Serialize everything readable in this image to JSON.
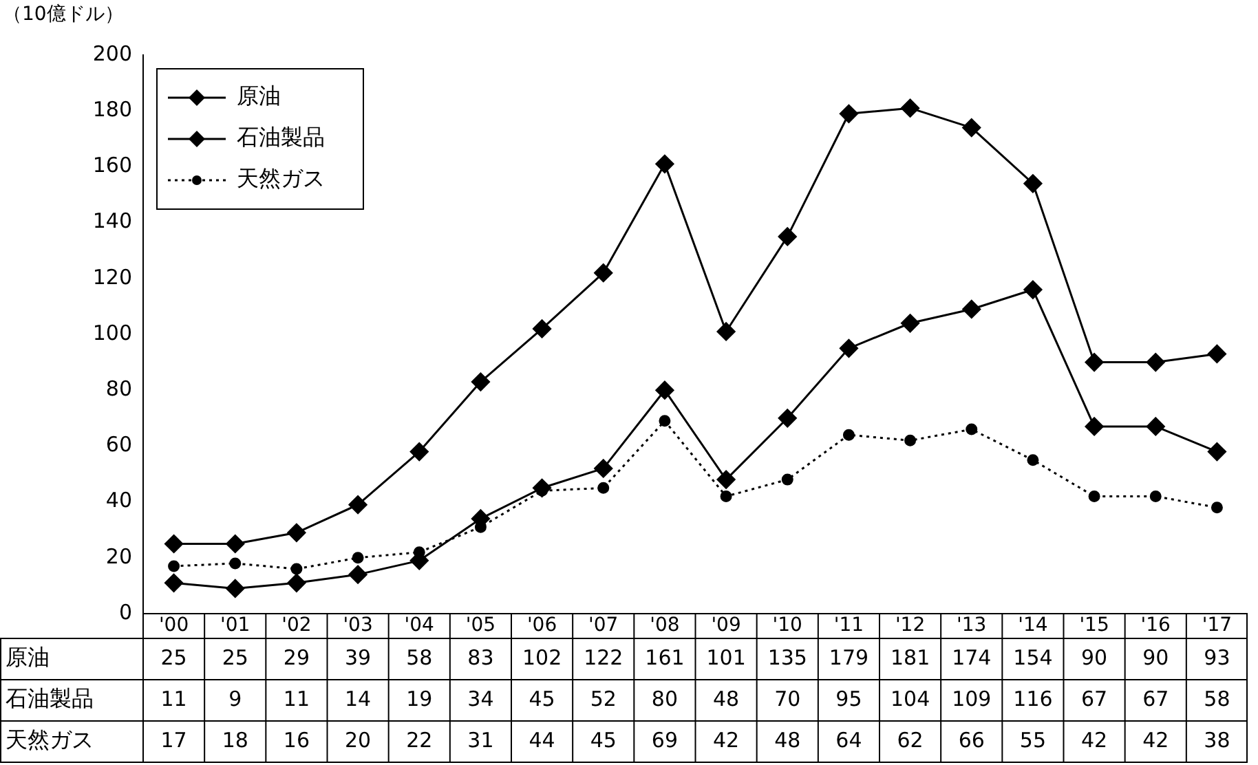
{
  "chart_data": {
    "type": "line",
    "ylabel": "（10億ドル）",
    "categories": [
      "'00",
      "'01",
      "'02",
      "'03",
      "'04",
      "'05",
      "'06",
      "'07",
      "'08",
      "'09",
      "'10",
      "'11",
      "'12",
      "'13",
      "'14",
      "'15",
      "'16",
      "'17"
    ],
    "series": [
      {
        "name": "原油",
        "color": "#000000",
        "marker": "diamond",
        "line_style": "solid",
        "values": [
          25,
          25,
          29,
          39,
          58,
          83,
          102,
          122,
          161,
          101,
          135,
          179,
          181,
          174,
          154,
          90,
          90,
          93
        ]
      },
      {
        "name": "石油製品",
        "color": "#000000",
        "marker": "diamond",
        "line_style": "solid",
        "values": [
          11,
          9,
          11,
          14,
          19,
          34,
          45,
          52,
          80,
          48,
          70,
          95,
          104,
          109,
          116,
          67,
          67,
          58
        ]
      },
      {
        "name": "天然ガス",
        "color": "#000000",
        "marker": "circle",
        "line_style": "dotted",
        "values": [
          17,
          18,
          16,
          20,
          22,
          31,
          44,
          45,
          69,
          42,
          48,
          64,
          62,
          66,
          55,
          42,
          42,
          38
        ]
      }
    ],
    "ylim": [
      0,
      200
    ],
    "yticks": [
      0,
      20,
      40,
      60,
      80,
      100,
      120,
      140,
      160,
      180,
      200
    ],
    "grid": false,
    "legend": "top left",
    "data_labels": true
  }
}
